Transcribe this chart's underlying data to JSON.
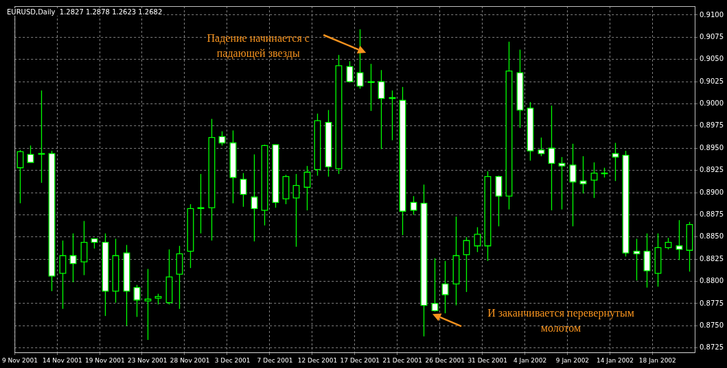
{
  "chart_data": {
    "type": "candlestick",
    "title": "EURUSD,Daily  1.2827 1.2878 1.2623 1.2682",
    "categories": [
      "9 Nov 2001",
      null,
      null,
      null,
      "14 Nov 2001",
      null,
      null,
      null,
      "19 Nov 2001",
      null,
      null,
      null,
      "23 Nov 2001",
      null,
      null,
      null,
      "28 Nov 2001",
      null,
      null,
      null,
      "3 Dec 2001",
      null,
      null,
      null,
      "7 Dec 2001",
      null,
      null,
      null,
      "12 Dec 2001",
      null,
      null,
      null,
      "17 Dec 2001",
      null,
      null,
      null,
      "21 Dec 2001",
      null,
      null,
      null,
      "26 Dec 2001",
      null,
      null,
      null,
      "31 Dec 2001",
      null,
      null,
      null,
      "4 Jan 2002",
      null,
      null,
      null,
      "9 Jan 2002",
      null,
      null,
      null,
      "14 Jan 2002",
      null,
      null,
      null,
      "18 Jan 2002",
      null,
      null,
      null
    ],
    "ohlc": [
      [
        0.8928,
        0.8948,
        0.8888,
        0.8946
      ],
      [
        0.8943,
        0.8953,
        0.8934,
        0.8934
      ],
      [
        0.8944,
        0.9015,
        0.8911,
        0.8944
      ],
      [
        0.8944,
        0.8947,
        0.8789,
        0.8806
      ],
      [
        0.8809,
        0.8846,
        0.8769,
        0.8829
      ],
      [
        0.8829,
        0.8854,
        0.8799,
        0.882
      ],
      [
        0.8822,
        0.8868,
        0.8807,
        0.8844
      ],
      [
        0.8848,
        0.8848,
        0.8837,
        0.8844
      ],
      [
        0.8844,
        0.8854,
        0.8761,
        0.8789
      ],
      [
        0.8789,
        0.8848,
        0.8776,
        0.8829
      ],
      [
        0.8832,
        0.8841,
        0.875,
        0.8789
      ],
      [
        0.8793,
        0.8796,
        0.876,
        0.8779
      ],
      [
        0.8778,
        0.8814,
        0.8734,
        0.878
      ],
      [
        0.8781,
        0.8786,
        0.8774,
        0.8783
      ],
      [
        0.8776,
        0.8836,
        0.8774,
        0.8805
      ],
      [
        0.8808,
        0.884,
        0.8769,
        0.8831
      ],
      [
        0.8834,
        0.8887,
        0.8815,
        0.8882
      ],
      [
        0.8882,
        0.8921,
        0.8854,
        0.8883
      ],
      [
        0.8883,
        0.8983,
        0.8846,
        0.8962
      ],
      [
        0.8963,
        0.8969,
        0.8953,
        0.8956
      ],
      [
        0.8956,
        0.897,
        0.8888,
        0.8917
      ],
      [
        0.8915,
        0.8922,
        0.8884,
        0.8898
      ],
      [
        0.8895,
        0.8943,
        0.8845,
        0.8882
      ],
      [
        0.888,
        0.8954,
        0.8863,
        0.8953
      ],
      [
        0.8954,
        0.8954,
        0.8883,
        0.8889
      ],
      [
        0.8893,
        0.892,
        0.8887,
        0.8918
      ],
      [
        0.8894,
        0.8921,
        0.8839,
        0.8908
      ],
      [
        0.8906,
        0.893,
        0.888,
        0.8923
      ],
      [
        0.8926,
        0.8989,
        0.8919,
        0.8981
      ],
      [
        0.8979,
        0.8993,
        0.8918,
        0.8929
      ],
      [
        0.8927,
        0.9055,
        0.8921,
        0.9043
      ],
      [
        0.9042,
        0.9048,
        0.9024,
        0.9025
      ],
      [
        0.9035,
        0.9084,
        0.9017,
        0.902
      ],
      [
        0.9025,
        0.9045,
        0.8992,
        0.9024
      ],
      [
        0.9025,
        0.9038,
        0.8949,
        0.9006
      ],
      [
        0.9007,
        0.9015,
        0.8959,
        0.9006
      ],
      [
        0.9004,
        0.9019,
        0.8852,
        0.8879
      ],
      [
        0.8889,
        0.8896,
        0.8875,
        0.888
      ],
      [
        0.8888,
        0.8909,
        0.8738,
        0.8773
      ],
      [
        0.8775,
        0.8826,
        0.8766,
        0.8767
      ],
      [
        0.8797,
        0.8823,
        0.8764,
        0.8785
      ],
      [
        0.8797,
        0.8873,
        0.8773,
        0.8829
      ],
      [
        0.883,
        0.885,
        0.8788,
        0.8846
      ],
      [
        0.884,
        0.8861,
        0.8833,
        0.8853
      ],
      [
        0.884,
        0.8924,
        0.8823,
        0.8918
      ],
      [
        0.8918,
        0.8919,
        0.8862,
        0.8896
      ],
      [
        0.8896,
        0.907,
        0.8881,
        0.9037
      ],
      [
        0.9035,
        0.9061,
        0.8973,
        0.8993
      ],
      [
        0.8995,
        0.9002,
        0.8936,
        0.8947
      ],
      [
        0.8948,
        0.8962,
        0.8941,
        0.8944
      ],
      [
        0.895,
        0.8998,
        0.888,
        0.8933
      ],
      [
        0.8933,
        0.894,
        0.8881,
        0.893
      ],
      [
        0.8931,
        0.8955,
        0.8862,
        0.8912
      ],
      [
        0.8913,
        0.8941,
        0.8899,
        0.891
      ],
      [
        0.8914,
        0.8934,
        0.8894,
        0.8922
      ],
      [
        0.8922,
        0.8928,
        0.8917,
        0.8922
      ],
      [
        0.8944,
        0.8956,
        0.8913,
        0.894
      ],
      [
        0.8942,
        0.8947,
        0.8828,
        0.8832
      ],
      [
        0.8834,
        0.8848,
        0.8801,
        0.8831
      ],
      [
        0.8834,
        0.8854,
        0.8793,
        0.8812
      ],
      [
        0.8809,
        0.8854,
        0.8794,
        0.8838
      ],
      [
        0.8838,
        0.8849,
        0.8836,
        0.8844
      ],
      [
        0.884,
        0.8869,
        0.8824,
        0.8836
      ],
      [
        0.8835,
        0.8867,
        0.8811,
        0.8864
      ]
    ],
    "color": "#00ff00",
    "colors": [
      "#000000",
      "#ffffff",
      "#000000",
      "#ffffff",
      "#000000",
      "#ffffff",
      "#000000",
      "#ffffff",
      "#ffffff",
      "#000000",
      "#ffffff",
      "#ffffff",
      "#000000",
      "#000000",
      "#000000",
      "#000000",
      "#000000",
      "#000000",
      "#000000",
      "#ffffff",
      "#ffffff",
      "#ffffff",
      "#ffffff",
      "#000000",
      "#ffffff",
      "#000000",
      "#000000",
      "#000000",
      "#000000",
      "#ffffff",
      "#000000",
      "#ffffff",
      "#ffffff",
      "#ffffff",
      "#ffffff",
      "#ffffff",
      "#ffffff",
      "#ffffff",
      "#ffffff",
      "#ffffff",
      "#ffffff",
      "#000000",
      "#000000",
      "#000000",
      "#000000",
      "#ffffff",
      "#000000",
      "#ffffff",
      "#ffffff",
      "#ffffff",
      "#ffffff",
      "#ffffff",
      "#ffffff",
      "#ffffff",
      "#000000",
      "#000000",
      "#ffffff",
      "#ffffff",
      "#ffffff",
      "#ffffff",
      "#000000",
      "#000000",
      "#ffffff",
      "#000000"
    ],
    "ylim": [
      0.872,
      0.911
    ],
    "yticks": [
      {
        "value": 0.8725,
        "label": "0.8725"
      },
      {
        "value": 0.875,
        "label": "0.8750"
      },
      0.8775,
      {
        "value": 0.88,
        "label": "0.8800"
      },
      0.8825,
      {
        "value": 0.885,
        "label": "0.8850"
      },
      0.8875,
      {
        "value": 0.89,
        "label": "0.8900"
      },
      0.8925,
      {
        "value": 0.895,
        "label": "0.8950"
      },
      0.8975,
      {
        "value": 0.9,
        "label": "0.9000"
      },
      0.9025,
      {
        "value": 0.905,
        "label": "0.9050"
      },
      0.9075,
      {
        "value": 0.91,
        "label": "0.9100"
      }
    ],
    "grid": true,
    "annotations": [
      "Падение начинается с падающей звезды",
      "И заканчивается перевернутым молотом"
    ]
  }
}
